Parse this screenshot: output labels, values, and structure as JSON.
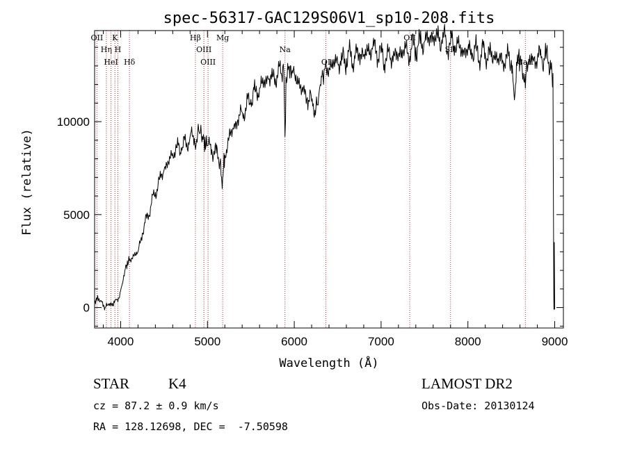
{
  "chart_data": {
    "type": "line",
    "title": "spec-56317-GAC129S06V1_sp10-208.fits",
    "xlabel": "Wavelength (Å)",
    "ylabel": "Flux (relative)",
    "xlim": [
      3700,
      9100
    ],
    "ylim": [
      -1100,
      14900
    ],
    "xticks": [
      4000,
      5000,
      6000,
      7000,
      8000,
      9000
    ],
    "yticks": [
      0,
      5000,
      10000
    ],
    "series": [
      {
        "x": [
          3700,
          3740,
          3780,
          3820,
          3860,
          3900,
          3940,
          3980,
          4000,
          4030,
          4060,
          4100,
          4150,
          4200,
          4250,
          4300,
          4350,
          4400,
          4450,
          4500,
          4550,
          4600,
          4650,
          4700,
          4750,
          4800,
          4850,
          4870,
          4900,
          4930,
          4960,
          5000,
          5050,
          5100,
          5150,
          5170,
          5185,
          5200,
          5250,
          5300,
          5350,
          5400,
          5450,
          5500,
          5550,
          5600,
          5650,
          5700,
          5750,
          5800,
          5850,
          5880,
          5893,
          5905,
          5930,
          5960,
          6000,
          6050,
          6100,
          6150,
          6200,
          6250,
          6280,
          6300,
          6330,
          6350,
          6400,
          6450,
          6500,
          6550,
          6600,
          6650,
          6700,
          6750,
          6800,
          6850,
          6900,
          6950,
          7000,
          7050,
          7100,
          7150,
          7200,
          7250,
          7300,
          7350,
          7400,
          7450,
          7500,
          7550,
          7600,
          7650,
          7700,
          7750,
          7800,
          7850,
          7900,
          7950,
          8000,
          8050,
          8100,
          8150,
          8200,
          8250,
          8300,
          8350,
          8400,
          8450,
          8500,
          8542,
          8560,
          8600,
          8662,
          8680,
          8700,
          8750,
          8800,
          8850,
          8900,
          8950,
          8980,
          8990,
          8995,
          9000
        ],
        "y": [
          300,
          500,
          300,
          0,
          200,
          100,
          400,
          500,
          900,
          1500,
          2300,
          2500,
          2800,
          3000,
          4000,
          4800,
          5500,
          6200,
          6900,
          7400,
          7800,
          8300,
          8600,
          8600,
          8800,
          9200,
          9100,
          8800,
          9500,
          9300,
          9000,
          8700,
          8500,
          8300,
          8000,
          6400,
          7600,
          8200,
          9200,
          9600,
          10100,
          10500,
          10800,
          11200,
          11600,
          11800,
          12100,
          12300,
          12400,
          12500,
          12600,
          12700,
          9200,
          12400,
          12800,
          13000,
          12600,
          12100,
          11600,
          11300,
          11100,
          10800,
          11300,
          12000,
          12500,
          12800,
          12900,
          13100,
          13200,
          13300,
          13400,
          13500,
          13400,
          13700,
          13600,
          13800,
          13900,
          13800,
          13700,
          13300,
          13500,
          13600,
          13600,
          13800,
          13700,
          13900,
          14000,
          14200,
          14300,
          14500,
          14600,
          14500,
          14400,
          14300,
          14200,
          14100,
          14000,
          13800,
          13900,
          13700,
          13800,
          13600,
          13700,
          13600,
          13500,
          13400,
          13300,
          13400,
          13300,
          11500,
          13200,
          13300,
          11800,
          13200,
          13300,
          13400,
          13400,
          13500,
          13400,
          13300,
          12600,
          -100,
          3500,
          -100
        ]
      }
    ],
    "lines": [
      {
        "name": "OII",
        "wave": 3727
      },
      {
        "name": "Hη",
        "wave": 3835
      },
      {
        "name": "HeI",
        "wave": 3889
      },
      {
        "name": "K",
        "wave": 3934
      },
      {
        "name": "H",
        "wave": 3968
      },
      {
        "name": "Hδ",
        "wave": 4102
      },
      {
        "name": "Hβ",
        "wave": 4861
      },
      {
        "name": "OIII",
        "wave": 4959
      },
      {
        "name": "OIII",
        "wave": 5007
      },
      {
        "name": "Mg",
        "wave": 5175
      },
      {
        "name": "Na",
        "wave": 5893
      },
      {
        "name": "OI",
        "wave": 6364
      },
      {
        "name": "OII",
        "wave": 7330
      },
      {
        "name": "SII",
        "wave": 7800
      },
      {
        "name": "CaII",
        "wave": 8662
      }
    ]
  },
  "info": {
    "class": "STAR",
    "subclass": "K4",
    "survey": "LAMOST DR2",
    "cz": "cz = 87.2 ± 0.9 km/s",
    "obs_date": "Obs-Date: 20130124",
    "radec": "RA = 128.12698, DEC =  -7.50598"
  }
}
